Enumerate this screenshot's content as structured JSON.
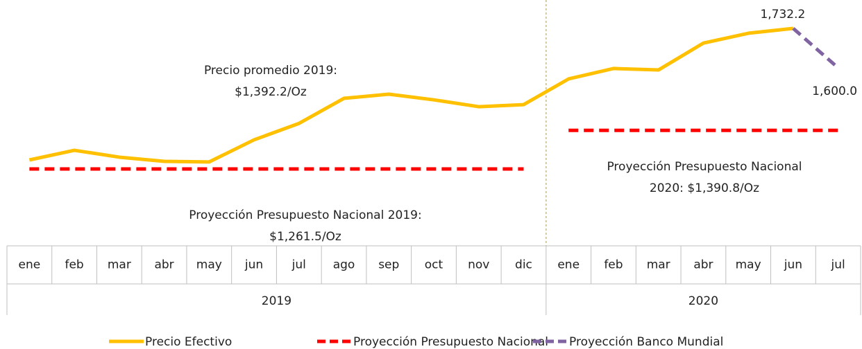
{
  "chart_data": {
    "type": "line",
    "category_groups": [
      {
        "name": "2019",
        "categories": [
          "ene",
          "feb",
          "mar",
          "abr",
          "may",
          "jun",
          "jul",
          "ago",
          "sep",
          "oct",
          "nov",
          "dic"
        ]
      },
      {
        "name": "2020",
        "categories": [
          "ene",
          "feb",
          "mar",
          "abr",
          "may",
          "jun",
          "jul"
        ]
      }
    ],
    "ylim": [
      1200,
      1800
    ],
    "series": [
      {
        "name": "Precio Efectivo",
        "color": "#ffc000",
        "dash": "solid",
        "values": [
          1291.6,
          1324,
          1301,
          1287,
          1285,
          1359,
          1414,
          1498,
          1512,
          1493,
          1470,
          1477,
          1563,
          1598,
          1593,
          1683,
          1716,
          1732.2,
          null
        ]
      },
      {
        "name": "Proyección Presupuesto Nacional",
        "color": "#ff0000",
        "dash": "dashed",
        "values": [
          [
            1261.5,
            1261.5,
            1261.5,
            1261.5,
            1261.5,
            1261.5,
            1261.5,
            1261.5,
            1261.5,
            1261.5,
            1261.5,
            1261.5
          ],
          [
            1390.8,
            1390.8,
            1390.8,
            1390.8,
            1390.8,
            1390.8,
            1390.8
          ]
        ]
      },
      {
        "name": "Proyección Banco Mundial",
        "color": "#8064a2",
        "dash": "dashed",
        "values": [
          null,
          null,
          null,
          null,
          null,
          null,
          null,
          null,
          null,
          null,
          null,
          null,
          null,
          null,
          null,
          null,
          null,
          1732.2,
          1600.0
        ],
        "value_labels": [
          null,
          null,
          null,
          null,
          null,
          null,
          null,
          null,
          null,
          null,
          null,
          null,
          null,
          null,
          null,
          null,
          null,
          "1,732.2",
          "1,600.0"
        ]
      }
    ],
    "annotations": [
      {
        "lines": [
          "Precio promedio 2019:",
          "$1,392.2/Oz"
        ]
      },
      {
        "lines": [
          "Proyección Presupuesto Nacional 2019:",
          "$1,261.5/Oz"
        ]
      },
      {
        "lines": [
          "Proyección Presupuesto Nacional",
          "2020: $1,390.8/Oz"
        ]
      }
    ]
  }
}
